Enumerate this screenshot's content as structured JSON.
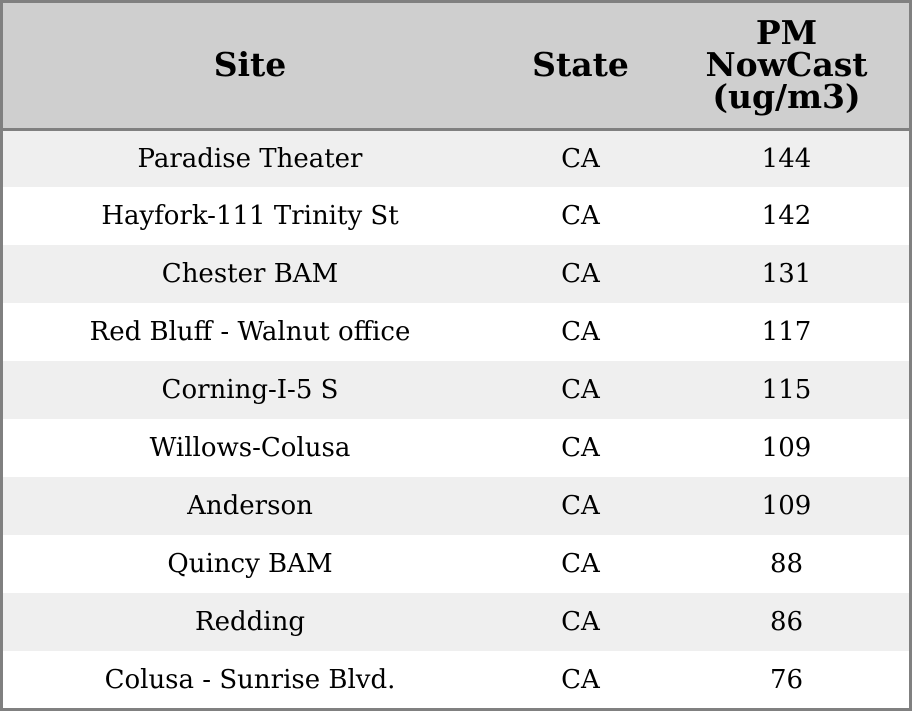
{
  "colors": {
    "header_background": "#cfcfcf",
    "row_shade": "#efefef",
    "border": "#808080"
  },
  "chart_data": {
    "type": "table",
    "columns": [
      "Site",
      "State",
      "PM NowCast (ug/m3)"
    ],
    "header_lines": {
      "site": [
        "Site"
      ],
      "state": [
        "State"
      ],
      "pm": [
        "PM",
        "NowCast",
        "(ug/m3)"
      ]
    },
    "rows": [
      {
        "site": "Paradise Theater",
        "state": "CA",
        "pm": "144"
      },
      {
        "site": "Hayfork-111 Trinity St",
        "state": "CA",
        "pm": "142"
      },
      {
        "site": "Chester BAM",
        "state": "CA",
        "pm": "131"
      },
      {
        "site": "Red Bluff - Walnut office",
        "state": "CA",
        "pm": "117"
      },
      {
        "site": "Corning-I-5 S",
        "state": "CA",
        "pm": "115"
      },
      {
        "site": "Willows-Colusa",
        "state": "CA",
        "pm": "109"
      },
      {
        "site": "Anderson",
        "state": "CA",
        "pm": "109"
      },
      {
        "site": "Quincy BAM",
        "state": "CA",
        "pm": "88"
      },
      {
        "site": "Redding",
        "state": "CA",
        "pm": "86"
      },
      {
        "site": "Colusa - Sunrise Blvd.",
        "state": "CA",
        "pm": "76"
      }
    ]
  }
}
